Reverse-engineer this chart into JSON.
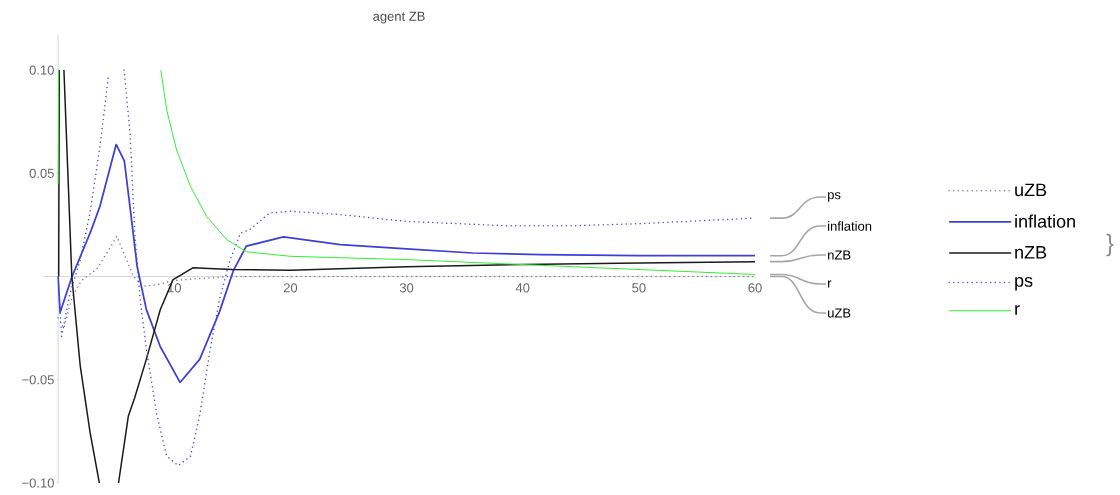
{
  "chart_data": {
    "type": "line",
    "title": "agent ZB",
    "xlim": [
      -1.3,
      60
    ],
    "ylim": [
      -0.1,
      0.117
    ],
    "xticks": [
      10,
      20,
      30,
      40,
      50,
      60
    ],
    "yticks": [
      {
        "value": -0.1,
        "label": "−0.10"
      },
      {
        "value": -0.05,
        "label": "−0.05"
      },
      {
        "value": 0.05,
        "label": "0.05"
      },
      {
        "value": 0.1,
        "label": "0.10"
      }
    ],
    "legend": "right",
    "marker": "none",
    "annotations": [
      "}"
    ],
    "series": [
      {
        "name": "uZB",
        "color": "#7a7a9a",
        "line_style": "dotted",
        "x": [
          0,
          0.5,
          1.2,
          2,
          2.7,
          3.3,
          4.2,
          5.05,
          5.77,
          6.5,
          7.3,
          8.5,
          9.9,
          12,
          15,
          20,
          30,
          40,
          50,
          60
        ],
        "values": [
          -0.02,
          -0.025,
          -0.01,
          -0.002,
          0.001,
          0.0034,
          0.0114,
          0.0195,
          0.0098,
          0,
          -0.0047,
          -0.004,
          -0.002,
          -0.001,
          0,
          0,
          0,
          0,
          0,
          0
        ]
      },
      {
        "name": "inflation",
        "color": "#3f3fd6",
        "line_style": "solid",
        "x": [
          0,
          0.17,
          1.2,
          2.75,
          3.6,
          5.0,
          5.7,
          6.25,
          6.8,
          7.6,
          8.8,
          10.5,
          12.2,
          13.9,
          15.1,
          16.2,
          19.4,
          24.3,
          30,
          35.7,
          41.5,
          50,
          60
        ],
        "values": [
          0,
          -0.0174,
          0,
          0.021,
          0.034,
          0.064,
          0.056,
          0.031,
          0.005,
          -0.016,
          -0.034,
          -0.0513,
          -0.04,
          -0.017,
          0.003,
          0.0147,
          0.0192,
          0.0155,
          0.0134,
          0.0114,
          0.0106,
          0.0101,
          0.0101
        ]
      },
      {
        "name": "nZB",
        "color": "#1a1a1a",
        "line_style": "solid",
        "x": [
          0.05,
          0.1,
          0.3,
          0.5,
          1.18,
          1.9,
          2.75,
          3.55,
          4.4,
          5.2,
          6.05,
          6.6,
          7.6,
          8.8,
          9.9,
          11.6,
          13.5,
          15,
          20,
          30,
          40,
          50,
          60
        ],
        "values": [
          0,
          0.1,
          null,
          0.1,
          0,
          -0.043,
          -0.0755,
          -0.1,
          null,
          -0.1,
          -0.0675,
          -0.0586,
          -0.04,
          -0.016,
          -0.0015,
          0.0042,
          0.0038,
          0.0034,
          0.003,
          0.0047,
          0.0058,
          0.0066,
          0.0072
        ]
      },
      {
        "name": "ps",
        "color": "#4a4ae0",
        "line_style": "dotted",
        "x": [
          0,
          0.3,
          1.03,
          1.9,
          2.75,
          3.6,
          4.33,
          5,
          5.68,
          6.2,
          6.6,
          7.06,
          7.6,
          8.5,
          9.35,
          10.35,
          11.4,
          12.2,
          13.1,
          13.9,
          14.8,
          15.7,
          16.5,
          18.2,
          20,
          24.3,
          30,
          38.6,
          44.3,
          50,
          60
        ],
        "values": [
          0,
          -0.029,
          -0.008,
          0.008,
          0.031,
          0.063,
          0.097,
          null,
          0.1,
          0.069,
          0.021,
          -0.011,
          -0.035,
          -0.067,
          -0.087,
          -0.0916,
          -0.087,
          -0.067,
          -0.035,
          -0.011,
          0.008,
          0.021,
          0.0227,
          0.0308,
          0.0316,
          0.03,
          0.0267,
          0.0246,
          0.0246,
          0.0256,
          0.0283
        ]
      },
      {
        "name": "r",
        "color": "#33ee33",
        "line_style": "solid",
        "x": [
          0,
          0.05,
          0.5,
          8.84,
          9.35,
          10.2,
          11.4,
          12.8,
          14.5,
          16.2,
          20,
          30,
          40,
          50,
          60
        ],
        "values": [
          0.045,
          0.1,
          null,
          0.1,
          0.0807,
          0.0613,
          0.0436,
          0.029,
          0.018,
          0.012,
          0.0098,
          0.0082,
          0.0058,
          0.0034,
          0.001
        ]
      }
    ]
  }
}
